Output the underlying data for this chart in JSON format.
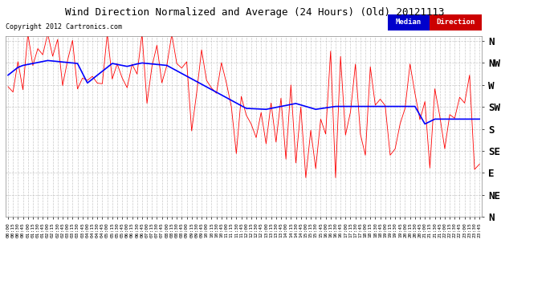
{
  "title": "Wind Direction Normalized and Average (24 Hours) (Old) 20121113",
  "copyright": "Copyright 2012 Cartronics.com",
  "legend_median": "Median",
  "legend_direction": "Direction",
  "ytick_labels": [
    "N",
    "NW",
    "W",
    "SW",
    "S",
    "SE",
    "E",
    "NE",
    "N"
  ],
  "ytick_values": [
    360,
    315,
    270,
    225,
    180,
    135,
    90,
    45,
    0
  ],
  "ylim": [
    0,
    370
  ],
  "median_color": "#0000ff",
  "direction_color": "#ff0000",
  "median_label_bg": "#0000cc",
  "direction_label_bg": "#cc0000",
  "grid_color": "#bbbbbb",
  "bg_color": "#ffffff"
}
